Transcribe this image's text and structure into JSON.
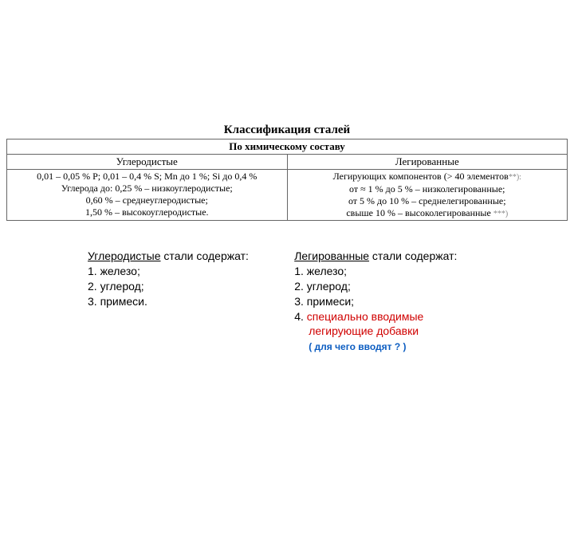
{
  "title": "Классификация сталей",
  "table": {
    "header": "По химическому составу",
    "left_label": "Углеродистые",
    "right_label": "Легированные",
    "left_body_l1": "0,01 – 0,05 % P;  0,01 – 0,4 % S;  Mn до 1 %;  Si до 0,4 %",
    "left_body_l2": "Углерода до: 0,25 % – низкоуглеродистые;",
    "left_body_l3": "0,60 % – среднеуглеродистые;",
    "left_body_l4": "1,50 % – высокоуглеродистые.",
    "right_body_l1a": "Легирующих компонентов (> 40 элементов",
    "right_body_l1b": "**):",
    "right_body_l2": "от ≈ 1 % до 5 % – низколегированные;",
    "right_body_l3": "от 5 % до 10 % – среднелегированные;",
    "right_body_l4a": "свыше 10 % – высоколегированные ",
    "right_body_l4b": "***)"
  },
  "colA": {
    "h": "Углеродистые",
    "h2": " стали содержат:",
    "l1": "1. железо;",
    "l2": "2. углерод;",
    "l3": "3. примеси."
  },
  "colB": {
    "h": "Легированные",
    "h2": " стали содержат:",
    "l1": "1. железо;",
    "l2": "2. углерод;",
    "l3": "3. примеси;",
    "l4a": "4. ",
    "l4b": "специально вводимые",
    "l5": "легирующие добавки",
    "note": "( для чего вводят ? )"
  }
}
